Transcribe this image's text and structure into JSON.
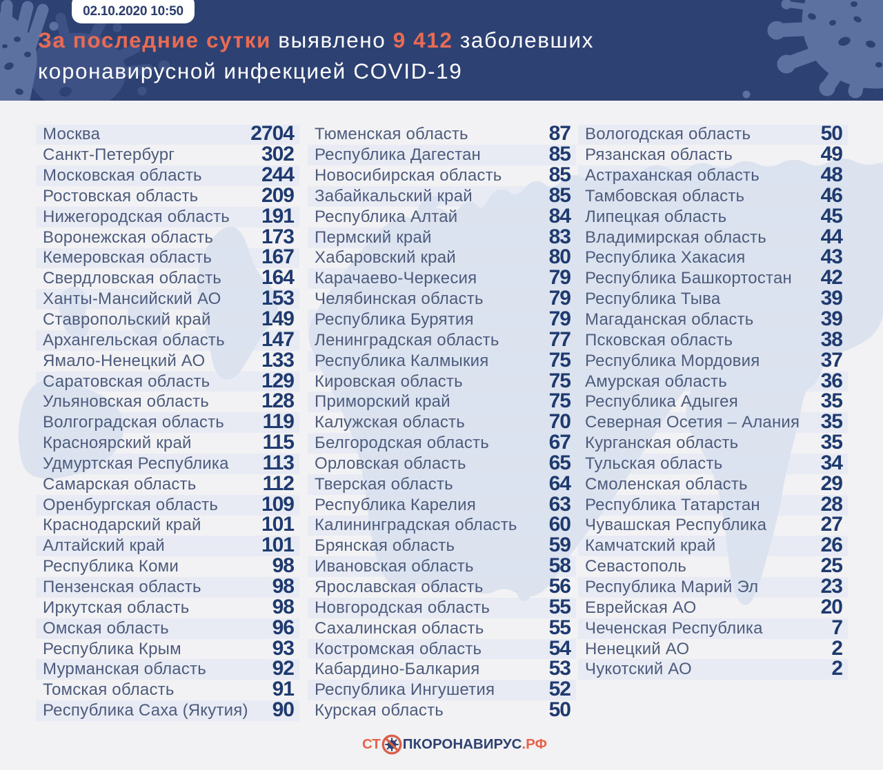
{
  "header": {
    "date_badge": "02.10.2020 10:50",
    "headline": {
      "highlight_1": "За последние сутки",
      "text_1": " выявлено ",
      "highlight_2": "9 412",
      "text_2": " заболевших",
      "line_2": "коронавирусной инфекцией COVID-19"
    }
  },
  "footer": {
    "logo_prefix": "СТ",
    "logo_middle": "ПКОРОНАВИРУС",
    "logo_suffix": ".РФ"
  },
  "colors": {
    "header_bg": "#2d4272",
    "accent_orange": "#e96b53",
    "page_bg": "#f2f2f4",
    "stripe": "#e7ebf2",
    "region_text": "#4d5c7c",
    "value_text": "#1e3a6e",
    "map": "#dce2ed",
    "logo_navy": "#2e4170"
  },
  "chart_data": {
    "type": "table",
    "title": "За последние сутки выявлено 9 412 заболевших коронавирусной инфекцией COVID-19",
    "timestamp": "02.10.2020 10:50",
    "total_new_cases": 9412,
    "columns": [
      {
        "rows": [
          {
            "region": "Москва",
            "value": "2704"
          },
          {
            "region": "Санкт-Петербург",
            "value": "302"
          },
          {
            "region": "Московская область",
            "value": "244"
          },
          {
            "region": "Ростовская область",
            "value": "209"
          },
          {
            "region": "Нижегородская область",
            "value": "191"
          },
          {
            "region": "Воронежская область",
            "value": "173"
          },
          {
            "region": "Кемеровская область",
            "value": "167"
          },
          {
            "region": "Свердловская область",
            "value": "164"
          },
          {
            "region": "Ханты-Мансийский АО",
            "value": "153"
          },
          {
            "region": "Ставропольский край",
            "value": "149"
          },
          {
            "region": "Архангельская область",
            "value": "147"
          },
          {
            "region": "Ямало-Ненецкий АО",
            "value": "133"
          },
          {
            "region": "Саратовская область",
            "value": "129"
          },
          {
            "region": "Ульяновская область",
            "value": "128"
          },
          {
            "region": "Волгоградская область",
            "value": "119"
          },
          {
            "region": "Красноярский край",
            "value": "115"
          },
          {
            "region": "Удмуртская Республика",
            "value": "113"
          },
          {
            "region": "Самарская область",
            "value": "112"
          },
          {
            "region": "Оренбургская область",
            "value": "109"
          },
          {
            "region": "Краснодарский край",
            "value": "101"
          },
          {
            "region": "Алтайский край",
            "value": "101"
          },
          {
            "region": "Республика Коми",
            "value": "98"
          },
          {
            "region": "Пензенская область",
            "value": "98"
          },
          {
            "region": "Иркутская область",
            "value": "98"
          },
          {
            "region": "Омская область",
            "value": "96"
          },
          {
            "region": "Республика Крым",
            "value": "93"
          },
          {
            "region": "Мурманская область",
            "value": "92"
          },
          {
            "region": "Томская область",
            "value": "91"
          },
          {
            "region": "Республика Саха (Якутия)",
            "value": "90"
          }
        ]
      },
      {
        "rows": [
          {
            "region": "Тюменская область",
            "value": "87"
          },
          {
            "region": "Республика Дагестан",
            "value": "85"
          },
          {
            "region": "Новосибирская область",
            "value": "85"
          },
          {
            "region": "Забайкальский край",
            "value": "85"
          },
          {
            "region": "Республика Алтай",
            "value": "84"
          },
          {
            "region": "Пермский край",
            "value": "83"
          },
          {
            "region": "Хабаровский край",
            "value": "80"
          },
          {
            "region": "Карачаево-Черкесия",
            "value": "79"
          },
          {
            "region": "Челябинская область",
            "value": "79"
          },
          {
            "region": "Республика Бурятия",
            "value": "79"
          },
          {
            "region": "Ленинградская область",
            "value": "77"
          },
          {
            "region": "Республика Калмыкия",
            "value": "75"
          },
          {
            "region": "Кировская область",
            "value": "75"
          },
          {
            "region": "Приморский край",
            "value": "75"
          },
          {
            "region": "Калужская область",
            "value": "70"
          },
          {
            "region": "Белгородская область",
            "value": "67"
          },
          {
            "region": "Орловская область",
            "value": "65"
          },
          {
            "region": "Тверская область",
            "value": "64"
          },
          {
            "region": "Республика Карелия",
            "value": "63"
          },
          {
            "region": "Калининградская область",
            "value": "60"
          },
          {
            "region": "Брянская область",
            "value": "59"
          },
          {
            "region": "Ивановская область",
            "value": "58"
          },
          {
            "region": "Ярославская область",
            "value": "56"
          },
          {
            "region": "Новгородская область",
            "value": "55"
          },
          {
            "region": "Сахалинская область",
            "value": "55"
          },
          {
            "region": "Костромская область",
            "value": "54"
          },
          {
            "region": "Кабардино-Балкария",
            "value": "53"
          },
          {
            "region": "Республика Ингушетия",
            "value": "52"
          },
          {
            "region": "Курская область",
            "value": "50"
          }
        ]
      },
      {
        "rows": [
          {
            "region": "Вологодская область",
            "value": "50"
          },
          {
            "region": "Рязанская область",
            "value": "49"
          },
          {
            "region": "Астраханская область",
            "value": "48"
          },
          {
            "region": "Тамбовская область",
            "value": "46"
          },
          {
            "region": "Липецкая область",
            "value": "45"
          },
          {
            "region": "Владимирская область",
            "value": "44"
          },
          {
            "region": "Республика Хакасия",
            "value": "43"
          },
          {
            "region": "Республика Башкортостан",
            "value": "42"
          },
          {
            "region": "Республика Тыва",
            "value": "39"
          },
          {
            "region": "Магаданская область",
            "value": "39"
          },
          {
            "region": "Псковская область",
            "value": "38"
          },
          {
            "region": "Республика Мордовия",
            "value": "37"
          },
          {
            "region": "Амурская область",
            "value": "36"
          },
          {
            "region": "Республика Адыгея",
            "value": "35"
          },
          {
            "region": "Северная Осетия – Алания",
            "value": "35"
          },
          {
            "region": "Курганская область",
            "value": "35"
          },
          {
            "region": "Тульская область",
            "value": "34"
          },
          {
            "region": "Смоленская область",
            "value": "29"
          },
          {
            "region": "Республика Татарстан",
            "value": "28"
          },
          {
            "region": "Чувашская Республика",
            "value": "27"
          },
          {
            "region": "Камчатский край",
            "value": "26"
          },
          {
            "region": "Севастополь",
            "value": "25"
          },
          {
            "region": "Республика Марий Эл",
            "value": "23"
          },
          {
            "region": "Еврейская АО",
            "value": "20"
          },
          {
            "region": "Чеченская Республика",
            "value": "7"
          },
          {
            "region": "Ненецкий АО",
            "value": "2"
          },
          {
            "region": "Чукотский АО",
            "value": "2"
          }
        ]
      }
    ]
  }
}
